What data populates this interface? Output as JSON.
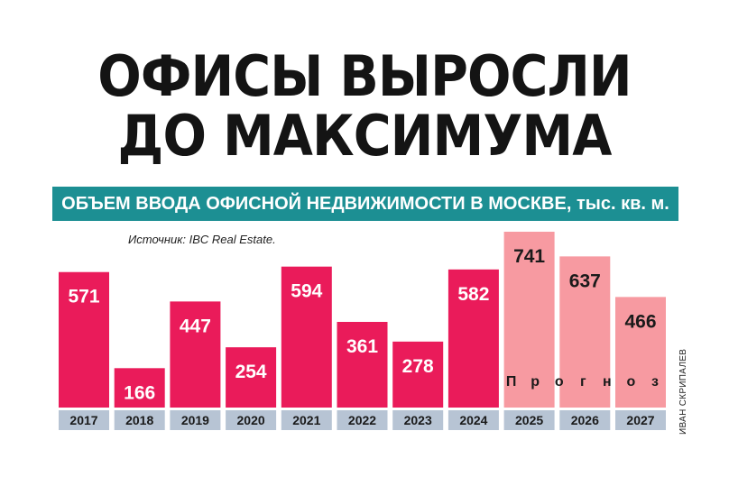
{
  "headline": {
    "line1": "ОФИСЫ ВЫРОСЛИ",
    "line2": "ДО МАКСИМУМА"
  },
  "subtitle": "ОБЪЕМ ВВОДА ОФИСНОЙ НЕДВИЖИМОСТИ В МОСКВЕ, тыс. кв. м.",
  "source": "Источник: IBC Real Estate.",
  "credit": "ИВАН СКРИПАЛЕВ",
  "colors": {
    "actual": "#ea1b5a",
    "forecast": "#f79aa1",
    "axis_band": "#b7c4d4",
    "subtitle_bg": "#1c8f93"
  },
  "chart_data": {
    "type": "bar",
    "title": "ОБЪЕМ ВВОДА ОФИСНОЙ НЕДВИЖИМОСТИ В МОСКВЕ, тыс. кв. м.",
    "categories": [
      "2017",
      "2018",
      "2019",
      "2020",
      "2021",
      "2022",
      "2023",
      "2024",
      "2025",
      "2026",
      "2027"
    ],
    "values": [
      571,
      166,
      447,
      254,
      594,
      361,
      278,
      582,
      741,
      637,
      466
    ],
    "forecast_from": "2025",
    "forecast_label": "Прогноз",
    "xlabel": "",
    "ylabel": "",
    "ylim": [
      0,
      741
    ],
    "grid": false,
    "legend": "none"
  }
}
